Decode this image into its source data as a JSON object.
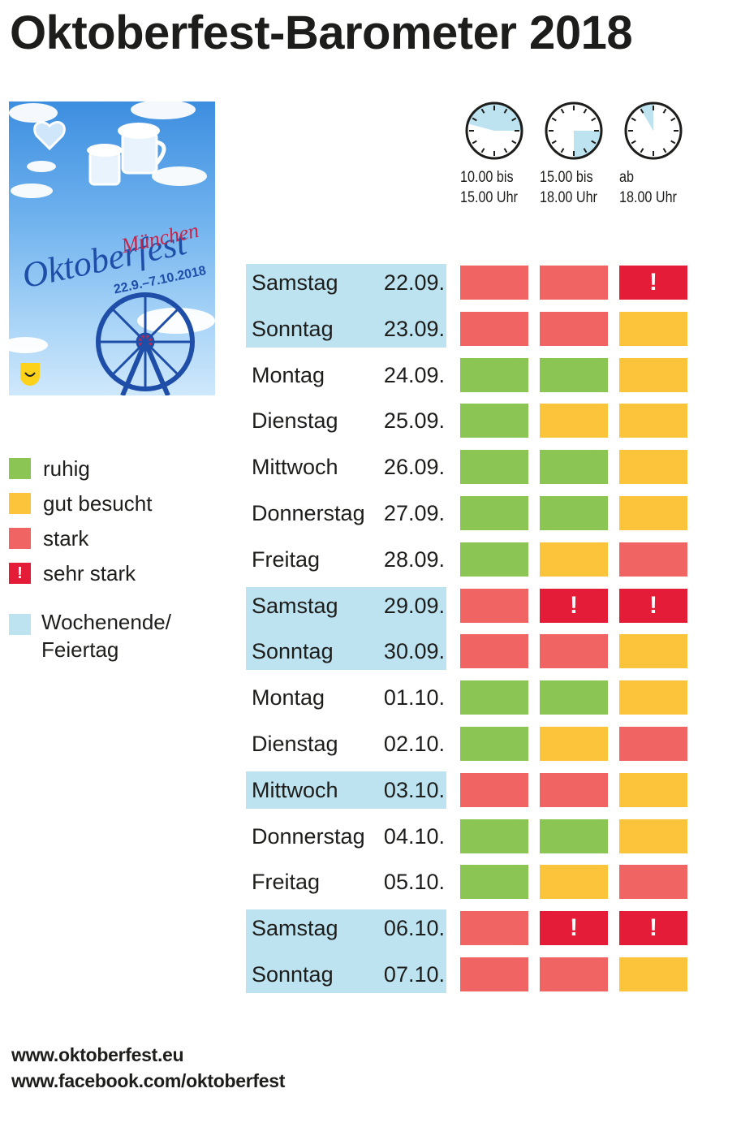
{
  "title": "Oktoberfest-Barometer 2018",
  "colors": {
    "ruhig": "#8bc655",
    "gut_besucht": "#fcc43a",
    "stark": "#f06463",
    "sehr_stark": "#e41c38",
    "wochenende": "#bde3f0"
  },
  "poster": {
    "headline": "Oktoberfest",
    "city": "München",
    "dates": "22.9.–7.10.2018"
  },
  "time_slots": [
    {
      "line1": "10.00 bis",
      "line2": "15.00 Uhr",
      "icon": "clock-icon"
    },
    {
      "line1": "15.00 bis",
      "line2": "18.00 Uhr",
      "icon": "clock-icon"
    },
    {
      "line1": "ab",
      "line2": "18.00 Uhr",
      "icon": "clock-icon"
    }
  ],
  "legend": [
    {
      "label": "ruhig",
      "level": "ruhig",
      "symbol": ""
    },
    {
      "label": "gut besucht",
      "level": "gut_besucht",
      "symbol": ""
    },
    {
      "label": "stark",
      "level": "stark",
      "symbol": ""
    },
    {
      "label": "sehr stark",
      "level": "sehr_stark",
      "symbol": "!"
    }
  ],
  "legend_weekend": {
    "line1": "Wochenende/",
    "line2": "Feiertag"
  },
  "days": [
    {
      "day": "Samstag",
      "date": "22.09.",
      "weekend": true,
      "levels": [
        "stark",
        "stark",
        "sehr_stark"
      ]
    },
    {
      "day": "Sonntag",
      "date": "23.09.",
      "weekend": true,
      "levels": [
        "stark",
        "stark",
        "gut_besucht"
      ]
    },
    {
      "day": "Montag",
      "date": "24.09.",
      "weekend": false,
      "levels": [
        "ruhig",
        "ruhig",
        "gut_besucht"
      ]
    },
    {
      "day": "Dienstag",
      "date": "25.09.",
      "weekend": false,
      "levels": [
        "ruhig",
        "gut_besucht",
        "gut_besucht"
      ]
    },
    {
      "day": "Mittwoch",
      "date": "26.09.",
      "weekend": false,
      "levels": [
        "ruhig",
        "ruhig",
        "gut_besucht"
      ]
    },
    {
      "day": "Donnerstag",
      "date": "27.09.",
      "weekend": false,
      "levels": [
        "ruhig",
        "ruhig",
        "gut_besucht"
      ]
    },
    {
      "day": "Freitag",
      "date": "28.09.",
      "weekend": false,
      "levels": [
        "ruhig",
        "gut_besucht",
        "stark"
      ]
    },
    {
      "day": "Samstag",
      "date": "29.09.",
      "weekend": true,
      "levels": [
        "stark",
        "sehr_stark",
        "sehr_stark"
      ]
    },
    {
      "day": "Sonntag",
      "date": "30.09.",
      "weekend": true,
      "levels": [
        "stark",
        "stark",
        "gut_besucht"
      ]
    },
    {
      "day": "Montag",
      "date": "01.10.",
      "weekend": false,
      "levels": [
        "ruhig",
        "ruhig",
        "gut_besucht"
      ]
    },
    {
      "day": "Dienstag",
      "date": "02.10.",
      "weekend": false,
      "levels": [
        "ruhig",
        "gut_besucht",
        "stark"
      ]
    },
    {
      "day": "Mittwoch",
      "date": "03.10.",
      "weekend": true,
      "levels": [
        "stark",
        "stark",
        "gut_besucht"
      ]
    },
    {
      "day": "Donnerstag",
      "date": "04.10.",
      "weekend": false,
      "levels": [
        "ruhig",
        "ruhig",
        "gut_besucht"
      ]
    },
    {
      "day": "Freitag",
      "date": "05.10.",
      "weekend": false,
      "levels": [
        "ruhig",
        "gut_besucht",
        "stark"
      ]
    },
    {
      "day": "Samstag",
      "date": "06.10.",
      "weekend": true,
      "levels": [
        "stark",
        "sehr_stark",
        "sehr_stark"
      ]
    },
    {
      "day": "Sonntag",
      "date": "07.10.",
      "weekend": true,
      "levels": [
        "stark",
        "stark",
        "gut_besucht"
      ]
    }
  ],
  "footer": {
    "website": "www.oktoberfest.eu",
    "facebook": "www.facebook.com/oktoberfest"
  }
}
